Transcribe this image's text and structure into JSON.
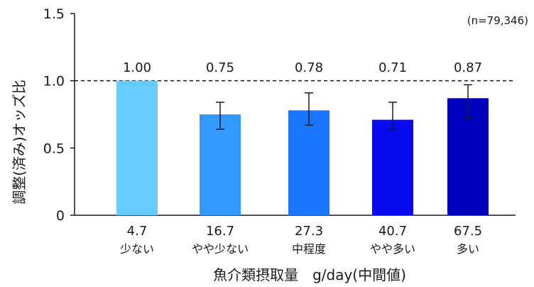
{
  "chart_data": {
    "type": "bar",
    "categories": [
      "4.7",
      "16.7",
      "27.3",
      "40.7",
      "67.5"
    ],
    "category_sublabels": [
      "少ない",
      "やや少ない",
      "中程度",
      "やや多い",
      "多い"
    ],
    "values": [
      1.0,
      0.75,
      0.78,
      0.71,
      0.87
    ],
    "value_labels": [
      "1.00",
      "0.75",
      "0.78",
      "0.71",
      "0.87"
    ],
    "error_low": [
      null,
      0.64,
      0.67,
      0.64,
      0.72
    ],
    "error_high": [
      null,
      0.84,
      0.91,
      0.84,
      0.97
    ],
    "colors": [
      "#66ccff",
      "#3399ff",
      "#1a75ff",
      "#0a0af0",
      "#0000c0"
    ],
    "ylim": [
      0,
      1.5
    ],
    "yticks": [
      0,
      0.5,
      1.0,
      1.5
    ],
    "ytick_labels": [
      "0",
      "0.5",
      "1.0",
      "1.5"
    ],
    "reference_line": 1.0,
    "ylabel": "調整(済み)オッズ比",
    "xlabel": "魚介類摂取量　g/day(中間値)",
    "annotation": "(n=79,346)",
    "grid": false
  }
}
